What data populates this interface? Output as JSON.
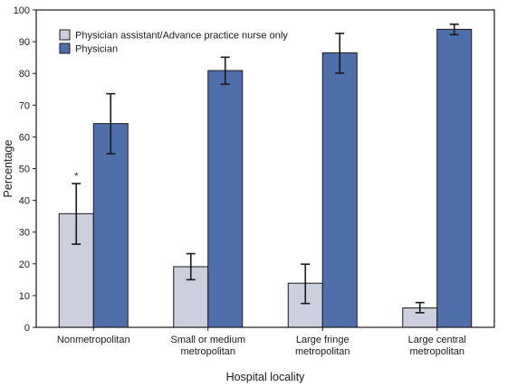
{
  "chart_data": {
    "type": "bar",
    "xlabel": "Hospital locality",
    "ylabel": "Percentage",
    "ylim": [
      0,
      100
    ],
    "yticks": [
      0,
      10,
      20,
      30,
      40,
      50,
      60,
      70,
      80,
      90,
      100
    ],
    "grid": false,
    "legend_position": "top-left",
    "categories": [
      [
        "Nonmetropolitan"
      ],
      [
        "Small or medium",
        "metropolitan"
      ],
      [
        "Large fringe",
        "metropolitan"
      ],
      [
        "Large central",
        "metropolitan"
      ]
    ],
    "series": [
      {
        "name": "Physician assistant/Advance practice nurse only",
        "color": "#cdcfde",
        "values": [
          35.8,
          19.1,
          13.9,
          6.1
        ],
        "error_low": [
          26.2,
          15.0,
          7.5,
          4.6
        ],
        "error_high": [
          45.3,
          23.2,
          19.9,
          7.8
        ]
      },
      {
        "name": "Physician",
        "color": "#4f6faa",
        "values": [
          64.2,
          80.9,
          86.5,
          93.9
        ],
        "error_low": [
          54.7,
          76.6,
          80.1,
          92.2
        ],
        "error_high": [
          73.6,
          85.1,
          92.6,
          95.5
        ]
      }
    ],
    "annotations": [
      {
        "text": "*",
        "series": 0,
        "category": 0
      }
    ]
  }
}
